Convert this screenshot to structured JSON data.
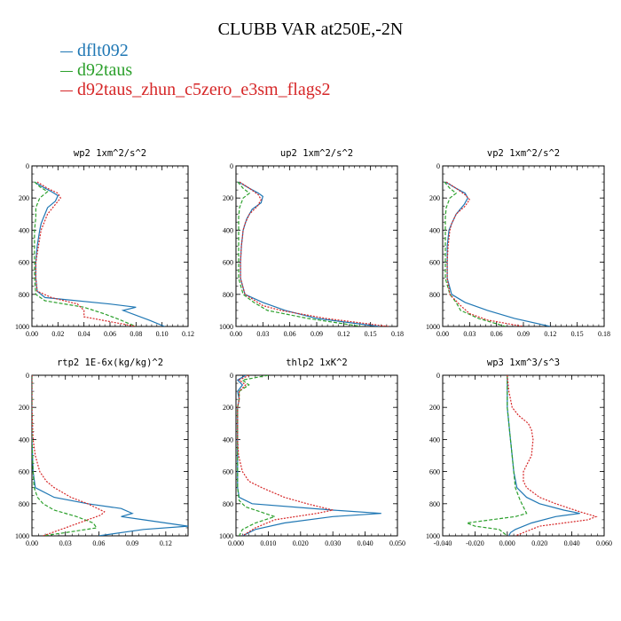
{
  "figure": {
    "title": "CLUBB VAR at250E,-2N",
    "legend": [
      {
        "name": "dflt092",
        "color": "#1f77b4"
      },
      {
        "name": "d92taus",
        "color": "#2ca02c"
      },
      {
        "name": "d92taus_zhun_c5zero_e3sm_flags2",
        "color": "#d62728"
      }
    ]
  },
  "chart_data": [
    {
      "type": "line",
      "title": "wp2   1xm^2/s^2",
      "xlim": [
        0,
        0.12
      ],
      "ylim": [
        1000,
        0
      ],
      "y_inverted": true,
      "xticks": [
        0,
        0.02,
        0.04,
        0.06,
        0.08,
        0.1,
        0.12
      ],
      "xtick_labels": [
        "0.00",
        "0.02",
        "0.04",
        "0.06",
        "0.08",
        "0.10",
        "0.12"
      ],
      "yticks": [
        0,
        200,
        400,
        600,
        800,
        1000
      ],
      "series": [
        {
          "name": "dflt092",
          "color": "#1f77b4",
          "dash": "solid",
          "y": [
            100,
            130,
            160,
            185,
            220,
            260,
            320,
            360,
            400,
            500,
            600,
            700,
            780,
            820,
            860,
            880,
            900,
            960,
            1000
          ],
          "x": [
            0.002,
            0.008,
            0.015,
            0.02,
            0.018,
            0.012,
            0.009,
            0.007,
            0.006,
            0.004,
            0.003,
            0.003,
            0.004,
            0.01,
            0.06,
            0.08,
            0.07,
            0.09,
            0.102
          ]
        },
        {
          "name": "d92taus",
          "color": "#2ca02c",
          "dash": "dashed",
          "y": [
            100,
            130,
            160,
            200,
            260,
            320,
            400,
            500,
            600,
            700,
            800,
            840,
            880,
            920,
            950,
            1000
          ],
          "x": [
            0.002,
            0.006,
            0.012,
            0.006,
            0.003,
            0.003,
            0.002,
            0.002,
            0.002,
            0.002,
            0.003,
            0.01,
            0.04,
            0.055,
            0.065,
            0.08
          ]
        },
        {
          "name": "d92taus_zhun_c5zero_e3sm_flags2",
          "color": "#d62728",
          "dash": "dotted",
          "y": [
            100,
            140,
            170,
            200,
            240,
            300,
            360,
            400,
            500,
            600,
            700,
            780,
            820,
            860,
            900,
            940,
            1000
          ],
          "x": [
            0.004,
            0.012,
            0.02,
            0.022,
            0.018,
            0.012,
            0.009,
            0.007,
            0.005,
            0.003,
            0.003,
            0.004,
            0.015,
            0.035,
            0.04,
            0.04,
            0.08
          ]
        }
      ]
    },
    {
      "type": "line",
      "title": "up2   1xm^2/s^2",
      "xlim": [
        0,
        0.18
      ],
      "ylim": [
        1000,
        0
      ],
      "y_inverted": true,
      "xticks": [
        0,
        0.03,
        0.06,
        0.09,
        0.12,
        0.15,
        0.18
      ],
      "xtick_labels": [
        "0.00",
        "0.03",
        "0.06",
        "0.09",
        "0.12",
        "0.15",
        "0.18"
      ],
      "yticks": [
        0,
        200,
        400,
        600,
        800,
        1000
      ],
      "series": [
        {
          "name": "dflt092",
          "color": "#1f77b4",
          "dash": "solid",
          "y": [
            100,
            140,
            170,
            190,
            230,
            270,
            330,
            400,
            500,
            600,
            700,
            800,
            850,
            900,
            950,
            1000
          ],
          "x": [
            0.003,
            0.015,
            0.025,
            0.03,
            0.028,
            0.018,
            0.012,
            0.008,
            0.006,
            0.005,
            0.005,
            0.01,
            0.03,
            0.055,
            0.09,
            0.16
          ]
        },
        {
          "name": "d92taus",
          "color": "#2ca02c",
          "dash": "dashed",
          "y": [
            100,
            140,
            170,
            200,
            260,
            320,
            400,
            500,
            600,
            700,
            800,
            850,
            900,
            950,
            1000
          ],
          "x": [
            0.002,
            0.008,
            0.015,
            0.008,
            0.004,
            0.003,
            0.003,
            0.003,
            0.003,
            0.003,
            0.008,
            0.02,
            0.035,
            0.08,
            0.14
          ]
        },
        {
          "name": "d92taus_zhun_c5zero_e3sm_flags2",
          "color": "#d62728",
          "dash": "dotted",
          "y": [
            100,
            140,
            180,
            210,
            250,
            300,
            360,
            400,
            500,
            600,
            700,
            800,
            870,
            900,
            950,
            1000
          ],
          "x": [
            0.004,
            0.015,
            0.025,
            0.028,
            0.024,
            0.015,
            0.01,
            0.008,
            0.006,
            0.005,
            0.005,
            0.01,
            0.03,
            0.05,
            0.1,
            0.17
          ]
        }
      ]
    },
    {
      "type": "line",
      "title": "vp2   1xm^2/s^2",
      "xlim": [
        0,
        0.18
      ],
      "ylim": [
        1000,
        0
      ],
      "y_inverted": true,
      "xticks": [
        0,
        0.03,
        0.06,
        0.09,
        0.12,
        0.15,
        0.18
      ],
      "xtick_labels": [
        "0.00",
        "0.03",
        "0.06",
        "0.09",
        "0.12",
        "0.15",
        "0.18"
      ],
      "yticks": [
        0,
        200,
        400,
        600,
        800,
        1000
      ],
      "series": [
        {
          "name": "dflt092",
          "color": "#1f77b4",
          "dash": "solid",
          "y": [
            100,
            140,
            170,
            200,
            240,
            300,
            360,
            400,
            500,
            600,
            700,
            800,
            850,
            900,
            950,
            1000
          ],
          "x": [
            0.003,
            0.015,
            0.025,
            0.028,
            0.024,
            0.015,
            0.01,
            0.007,
            0.005,
            0.005,
            0.005,
            0.01,
            0.025,
            0.05,
            0.08,
            0.12
          ]
        },
        {
          "name": "d92taus",
          "color": "#2ca02c",
          "dash": "dashed",
          "y": [
            100,
            140,
            170,
            200,
            260,
            320,
            400,
            500,
            600,
            700,
            800,
            850,
            900,
            950,
            1000
          ],
          "x": [
            0.002,
            0.008,
            0.015,
            0.008,
            0.004,
            0.003,
            0.003,
            0.003,
            0.003,
            0.003,
            0.008,
            0.015,
            0.02,
            0.04,
            0.07
          ]
        },
        {
          "name": "d92taus_zhun_c5zero_e3sm_flags2",
          "color": "#d62728",
          "dash": "dotted",
          "y": [
            100,
            140,
            180,
            210,
            250,
            300,
            360,
            400,
            500,
            600,
            700,
            800,
            870,
            920,
            960,
            1000
          ],
          "x": [
            0.004,
            0.015,
            0.025,
            0.03,
            0.025,
            0.015,
            0.01,
            0.008,
            0.006,
            0.005,
            0.005,
            0.008,
            0.02,
            0.03,
            0.05,
            0.09
          ]
        }
      ]
    },
    {
      "type": "line",
      "title": "rtp2   1E-6x(kg/kg)^2",
      "xlim": [
        0,
        0.14
      ],
      "ylim": [
        1000,
        0
      ],
      "y_inverted": true,
      "xticks": [
        0,
        0.03,
        0.06,
        0.09,
        0.12
      ],
      "xtick_labels": [
        "0.00",
        "0.03",
        "0.06",
        "0.09",
        "0.12"
      ],
      "yticks": [
        0,
        200,
        400,
        600,
        800,
        1000
      ],
      "series": [
        {
          "name": "dflt092",
          "color": "#1f77b4",
          "dash": "solid",
          "y": [
            0,
            200,
            400,
            600,
            700,
            760,
            800,
            830,
            860,
            880,
            900,
            940,
            960,
            1000
          ],
          "x": [
            0.0,
            0.0,
            0.0,
            0.001,
            0.003,
            0.02,
            0.05,
            0.08,
            0.09,
            0.08,
            0.1,
            0.14,
            0.1,
            0.06
          ]
        },
        {
          "name": "d92taus",
          "color": "#2ca02c",
          "dash": "dashed",
          "y": [
            0,
            200,
            400,
            600,
            700,
            760,
            800,
            840,
            880,
            920,
            950,
            980,
            1000
          ],
          "x": [
            0.0,
            0.0,
            0.0,
            0.001,
            0.002,
            0.005,
            0.01,
            0.02,
            0.04,
            0.055,
            0.058,
            0.03,
            0.01
          ]
        },
        {
          "name": "d92taus_zhun_c5zero_e3sm_flags2",
          "color": "#d62728",
          "dash": "dotted",
          "y": [
            0,
            200,
            400,
            500,
            600,
            660,
            700,
            760,
            800,
            850,
            870,
            900,
            950,
            1000
          ],
          "x": [
            0.0,
            0.0,
            0.001,
            0.003,
            0.007,
            0.013,
            0.02,
            0.035,
            0.05,
            0.065,
            0.062,
            0.05,
            0.03,
            0.01
          ]
        }
      ]
    },
    {
      "type": "line",
      "title": "thlp2   1xK^2",
      "xlim": [
        0,
        0.05
      ],
      "ylim": [
        1000,
        0
      ],
      "y_inverted": true,
      "xticks": [
        0,
        0.01,
        0.02,
        0.03,
        0.04,
        0.05
      ],
      "xtick_labels": [
        "0.000",
        "0.010",
        "0.020",
        "0.030",
        "0.040",
        "0.050"
      ],
      "yticks": [
        0,
        200,
        400,
        600,
        800,
        1000
      ],
      "series": [
        {
          "name": "dflt092",
          "color": "#1f77b4",
          "dash": "solid",
          "y": [
            0,
            30,
            60,
            100,
            150,
            200,
            300,
            400,
            500,
            600,
            700,
            760,
            800,
            840,
            860,
            880,
            920,
            960,
            1000
          ],
          "x": [
            0.003,
            0.0005,
            0.002,
            0.0005,
            0.001,
            0.0005,
            0.0005,
            0.0005,
            0.0005,
            0.0005,
            0.0005,
            0.001,
            0.005,
            0.03,
            0.045,
            0.03,
            0.015,
            0.006,
            0.002
          ]
        },
        {
          "name": "d92taus",
          "color": "#2ca02c",
          "dash": "dashed",
          "y": [
            0,
            30,
            60,
            100,
            150,
            200,
            300,
            400,
            500,
            600,
            700,
            780,
            820,
            860,
            880,
            920,
            960,
            1000
          ],
          "x": [
            0.01,
            0.002,
            0.004,
            0.001,
            0.001,
            0.0005,
            0.0005,
            0.0005,
            0.0005,
            0.0005,
            0.0005,
            0.001,
            0.003,
            0.009,
            0.012,
            0.006,
            0.002,
            0.001
          ]
        },
        {
          "name": "d92taus_zhun_c5zero_e3sm_flags2",
          "color": "#d62728",
          "dash": "dotted",
          "y": [
            0,
            30,
            60,
            100,
            150,
            200,
            300,
            400,
            500,
            600,
            660,
            700,
            760,
            800,
            840,
            860,
            900,
            950,
            1000
          ],
          "x": [
            0.004,
            0.001,
            0.003,
            0.001,
            0.001,
            0.0005,
            0.0005,
            0.0005,
            0.0008,
            0.002,
            0.004,
            0.008,
            0.015,
            0.022,
            0.03,
            0.025,
            0.012,
            0.006,
            0.002
          ]
        }
      ]
    },
    {
      "type": "line",
      "title": "wp3   1xm^3/s^3",
      "xlim": [
        -0.04,
        0.06
      ],
      "ylim": [
        1000,
        0
      ],
      "y_inverted": true,
      "xticks": [
        -0.04,
        -0.02,
        0,
        0.02,
        0.04,
        0.06
      ],
      "xtick_labels": [
        "-0.040",
        "-0.020",
        "0.000",
        "0.020",
        "0.040",
        "0.060"
      ],
      "yticks": [
        0,
        200,
        400,
        600,
        800,
        1000
      ],
      "series": [
        {
          "name": "dflt092",
          "color": "#1f77b4",
          "dash": "solid",
          "y": [
            0,
            100,
            200,
            300,
            400,
            500,
            600,
            700,
            760,
            800,
            840,
            860,
            880,
            920,
            960,
            980,
            1000
          ],
          "x": [
            0.0,
            0.0,
            0.0,
            0.001,
            0.002,
            0.003,
            0.004,
            0.006,
            0.012,
            0.02,
            0.035,
            0.045,
            0.03,
            0.015,
            0.005,
            0.002,
            0.001
          ]
        },
        {
          "name": "d92taus",
          "color": "#2ca02c",
          "dash": "dashed",
          "y": [
            0,
            100,
            200,
            300,
            400,
            500,
            600,
            700,
            780,
            820,
            860,
            880,
            900,
            920,
            940,
            960,
            1000
          ],
          "x": [
            0.0,
            0.0,
            0.0,
            0.001,
            0.002,
            0.003,
            0.004,
            0.005,
            0.008,
            0.01,
            0.012,
            0.005,
            -0.01,
            -0.025,
            -0.02,
            -0.005,
            0.0
          ]
        },
        {
          "name": "d92taus_zhun_c5zero_e3sm_flags2",
          "color": "#d62728",
          "dash": "dotted",
          "y": [
            0,
            100,
            200,
            250,
            300,
            340,
            400,
            500,
            560,
            600,
            660,
            700,
            760,
            800,
            850,
            880,
            900,
            940,
            1000
          ],
          "x": [
            0.0,
            0.001,
            0.003,
            0.007,
            0.013,
            0.015,
            0.016,
            0.015,
            0.012,
            0.01,
            0.01,
            0.012,
            0.02,
            0.03,
            0.045,
            0.055,
            0.05,
            0.02,
            0.005
          ]
        }
      ]
    }
  ]
}
